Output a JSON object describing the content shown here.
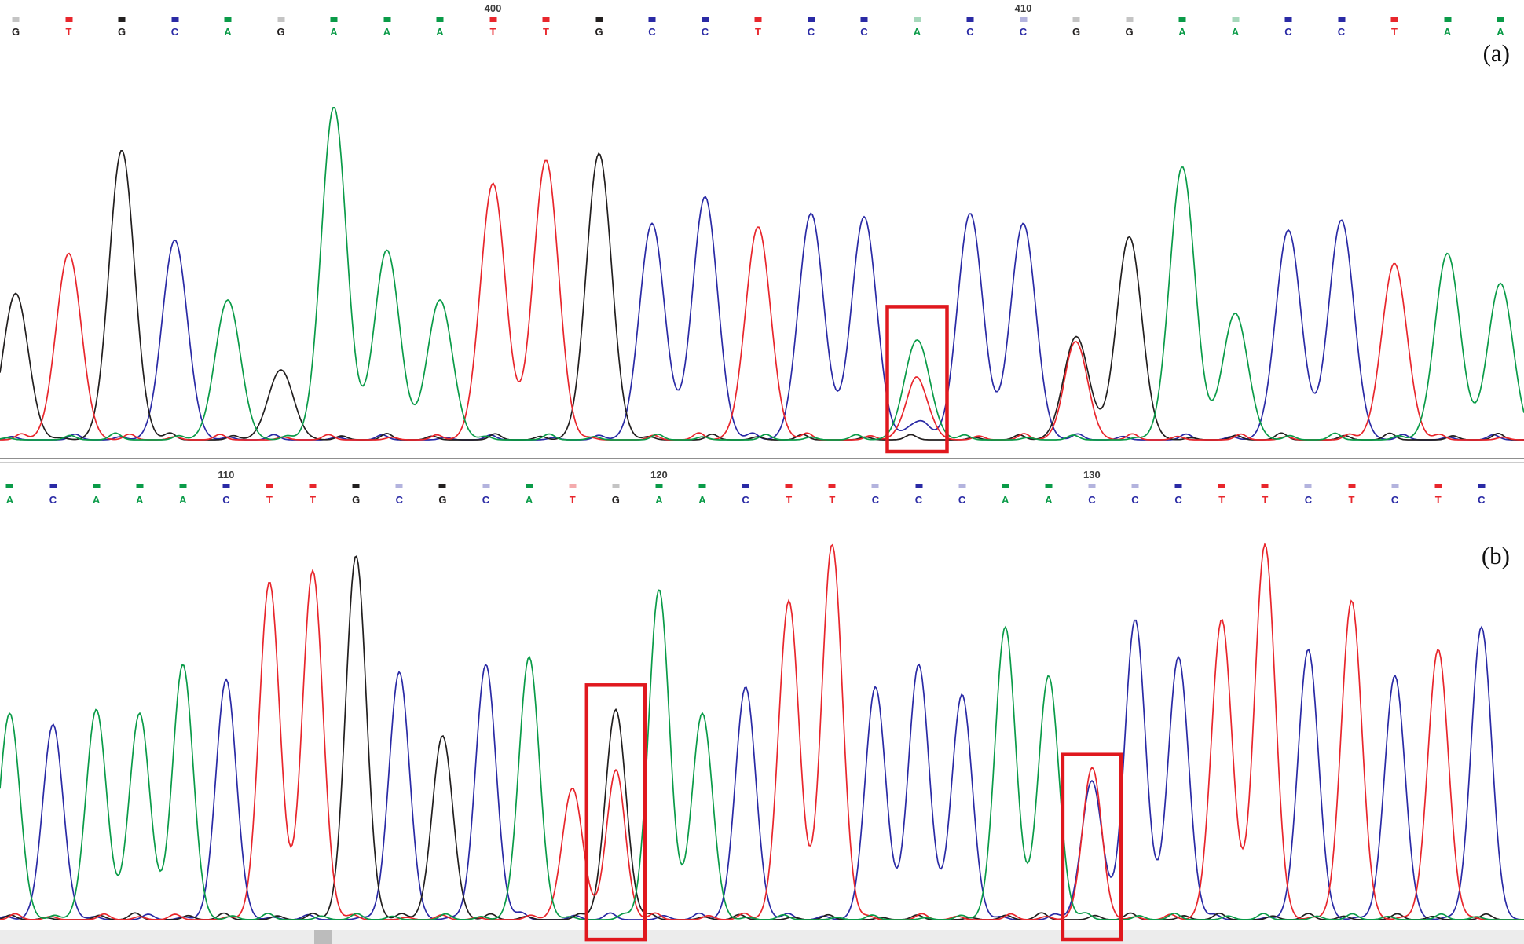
{
  "figure": {
    "panel_a_label": "(a)",
    "panel_b_label": "(b)"
  },
  "colors": {
    "solid": {
      "A": "#0a9b48",
      "C": "#2a2aa5",
      "G": "#221f1f",
      "T": "#e8262c"
    },
    "dim": {
      "A": "#a6d8bb",
      "C": "#b3b3de",
      "G": "#c4c4c4",
      "T": "#f4abad"
    },
    "box": "#e0181e",
    "position_number": "#3c3c3c",
    "strip": "#ececec",
    "strip_tab": "#bcbcbc"
  },
  "chart_data": [
    {
      "type": "line",
      "chart_type": "sanger-sequencing-chromatogram",
      "panel": "a",
      "panel_label": "(a)",
      "base_calls": "GTGCAGAAATTGCCTCCACCGGAACCTAA",
      "channels": {
        "A": "green",
        "C": "blue",
        "G": "black",
        "T": "red"
      },
      "position_labels": [
        {
          "base_index": 10,
          "label": "400"
        },
        {
          "base_index": 20,
          "label": "410"
        }
      ],
      "highlight_boxes": [
        {
          "base_index": 18
        }
      ],
      "bases": [
        {
          "base": "G",
          "height": 0.44,
          "dim": true
        },
        {
          "base": "T",
          "height": 0.56
        },
        {
          "base": "G",
          "height": 0.87
        },
        {
          "base": "C",
          "height": 0.6
        },
        {
          "base": "A",
          "height": 0.42
        },
        {
          "base": "G",
          "height": 0.21,
          "dim": true
        },
        {
          "base": "A",
          "height": 1.0
        },
        {
          "base": "A",
          "height": 0.57
        },
        {
          "base": "A",
          "height": 0.42
        },
        {
          "base": "T",
          "height": 0.77
        },
        {
          "base": "T",
          "height": 0.84
        },
        {
          "base": "G",
          "height": 0.86
        },
        {
          "base": "C",
          "height": 0.65
        },
        {
          "base": "C",
          "height": 0.73
        },
        {
          "base": "T",
          "height": 0.64
        },
        {
          "base": "C",
          "height": 0.68
        },
        {
          "base": "C",
          "height": 0.67
        },
        {
          "base": "A",
          "height": 0.3,
          "dim": true,
          "secondary": [
            {
              "base": "T",
              "height": 0.17
            },
            {
              "base": "C",
              "height": 0.05
            }
          ]
        },
        {
          "base": "C",
          "height": 0.68
        },
        {
          "base": "C",
          "height": 0.65,
          "dim": true
        },
        {
          "base": "G",
          "height": 0.31,
          "dim": true,
          "secondary": [
            {
              "base": "T",
              "height": 0.29
            }
          ]
        },
        {
          "base": "G",
          "height": 0.61,
          "dim": true
        },
        {
          "base": "A",
          "height": 0.82
        },
        {
          "base": "A",
          "height": 0.38,
          "dim": true
        },
        {
          "base": "C",
          "height": 0.63
        },
        {
          "base": "C",
          "height": 0.66
        },
        {
          "base": "T",
          "height": 0.53
        },
        {
          "base": "A",
          "height": 0.56
        },
        {
          "base": "A",
          "height": 0.47
        }
      ]
    },
    {
      "type": "line",
      "chart_type": "sanger-sequencing-chromatogram",
      "panel": "b",
      "panel_label": "(b)",
      "base_calls": "ACAAACTTGCGCATGAACTTCCCAACCCTTCTCTC",
      "channels": {
        "A": "green",
        "C": "blue",
        "G": "black",
        "T": "red"
      },
      "position_labels": [
        {
          "base_index": 6,
          "label": "110"
        },
        {
          "base_index": 16,
          "label": "120"
        },
        {
          "base_index": 26,
          "label": "130"
        }
      ],
      "highlight_boxes": [
        {
          "base_index": 15
        },
        {
          "base_index": 26
        }
      ],
      "bases": [
        {
          "base": "A",
          "height": 0.55
        },
        {
          "base": "C",
          "height": 0.52
        },
        {
          "base": "A",
          "height": 0.56
        },
        {
          "base": "A",
          "height": 0.55
        },
        {
          "base": "A",
          "height": 0.68
        },
        {
          "base": "C",
          "height": 0.64
        },
        {
          "base": "T",
          "height": 0.9
        },
        {
          "base": "T",
          "height": 0.93
        },
        {
          "base": "G",
          "height": 0.97
        },
        {
          "base": "C",
          "height": 0.66,
          "dim": true
        },
        {
          "base": "G",
          "height": 0.49
        },
        {
          "base": "C",
          "height": 0.68,
          "dim": true
        },
        {
          "base": "A",
          "height": 0.7
        },
        {
          "base": "T",
          "height": 0.35,
          "dim": true
        },
        {
          "base": "G",
          "height": 0.56,
          "dim": true,
          "secondary": [
            {
              "base": "T",
              "height": 0.39
            }
          ]
        },
        {
          "base": "A",
          "height": 0.88
        },
        {
          "base": "A",
          "height": 0.55
        },
        {
          "base": "C",
          "height": 0.62
        },
        {
          "base": "T",
          "height": 0.85
        },
        {
          "base": "T",
          "height": 1.0
        },
        {
          "base": "C",
          "height": 0.62,
          "dim": true
        },
        {
          "base": "C",
          "height": 0.68
        },
        {
          "base": "C",
          "height": 0.6,
          "dim": true
        },
        {
          "base": "A",
          "height": 0.78
        },
        {
          "base": "A",
          "height": 0.65
        },
        {
          "base": "C",
          "height": 0.37,
          "dim": true,
          "secondary": [
            {
              "base": "T",
              "height": 0.4
            }
          ]
        },
        {
          "base": "C",
          "height": 0.8,
          "dim": true
        },
        {
          "base": "C",
          "height": 0.7
        },
        {
          "base": "T",
          "height": 0.8
        },
        {
          "base": "T",
          "height": 1.0
        },
        {
          "base": "C",
          "height": 0.72,
          "dim": true
        },
        {
          "base": "T",
          "height": 0.85
        },
        {
          "base": "C",
          "height": 0.65,
          "dim": true
        },
        {
          "base": "T",
          "height": 0.72
        },
        {
          "base": "C",
          "height": 0.78
        }
      ]
    }
  ]
}
